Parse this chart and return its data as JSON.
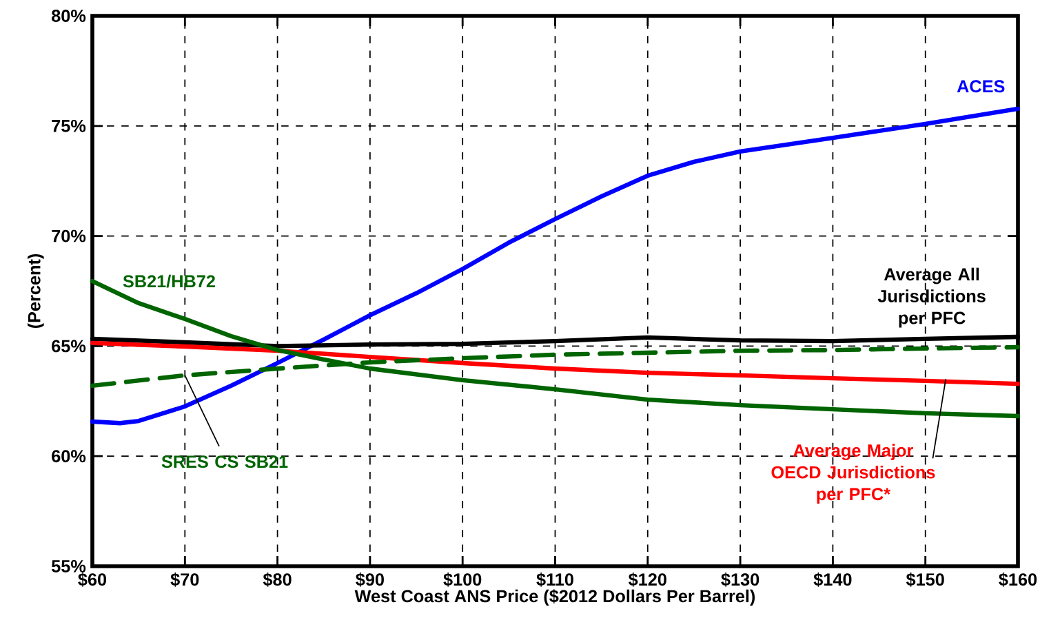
{
  "chart_data": {
    "type": "line",
    "xlabel": "West Coast ANS Price ($2012 Dollars Per Barrel)",
    "ylabel": "(Percent)",
    "xlim": [
      60,
      160
    ],
    "ylim": [
      55,
      80
    ],
    "xticks": [
      {
        "value": 60,
        "label": "$60"
      },
      {
        "value": 70,
        "label": "$70"
      },
      {
        "value": 80,
        "label": "$80"
      },
      {
        "value": 90,
        "label": "$90"
      },
      {
        "value": 100,
        "label": "$100"
      },
      {
        "value": 110,
        "label": "$110"
      },
      {
        "value": 120,
        "label": "$120"
      },
      {
        "value": 130,
        "label": "$130"
      },
      {
        "value": 140,
        "label": "$140"
      },
      {
        "value": 150,
        "label": "$150"
      },
      {
        "value": 160,
        "label": "$160"
      }
    ],
    "yticks": [
      {
        "value": 55,
        "label": "55%"
      },
      {
        "value": 60,
        "label": "60%"
      },
      {
        "value": 65,
        "label": "65%"
      },
      {
        "value": 70,
        "label": "70%"
      },
      {
        "value": 75,
        "label": "75%"
      },
      {
        "value": 80,
        "label": "80%"
      }
    ],
    "grid": true,
    "marker": "none",
    "series": [
      {
        "name": "ACES",
        "color": "#0000ff",
        "x": [
          60,
          63,
          65,
          70,
          75,
          80,
          85,
          90,
          95,
          100,
          105,
          110,
          115,
          120,
          125,
          130,
          140,
          150,
          160
        ],
        "values": [
          61.57,
          61.5,
          61.6,
          62.26,
          63.2,
          64.23,
          65.3,
          66.4,
          67.4,
          68.5,
          69.7,
          70.77,
          71.8,
          72.74,
          73.37,
          73.84,
          74.46,
          75.09,
          75.78
        ]
      },
      {
        "name": "Average All Jurisdictions per PFC",
        "color": "#000000",
        "x": [
          60,
          70,
          80,
          90,
          100,
          110,
          120,
          130,
          140,
          150,
          160
        ],
        "values": [
          65.33,
          65.17,
          65.0,
          65.07,
          65.1,
          65.23,
          65.39,
          65.26,
          65.23,
          65.33,
          65.42
        ]
      },
      {
        "name": "Average Major OECD Jurisdictions per PFC*",
        "color": "#ff0000",
        "x": [
          60,
          70,
          80,
          90,
          100,
          110,
          120,
          130,
          140,
          150,
          160
        ],
        "values": [
          65.14,
          64.98,
          64.79,
          64.51,
          64.23,
          63.98,
          63.79,
          63.67,
          63.54,
          63.42,
          63.29
        ]
      },
      {
        "name": "SB21/HB72",
        "color": "#006400",
        "x": [
          60,
          65,
          70,
          75,
          80,
          85,
          90,
          100,
          110,
          120,
          130,
          140,
          150,
          160
        ],
        "values": [
          67.95,
          66.95,
          66.23,
          65.45,
          64.82,
          64.39,
          63.98,
          63.45,
          63.04,
          62.57,
          62.32,
          62.13,
          61.95,
          61.82
        ]
      },
      {
        "name": "SRES CS SB21",
        "color": "#006400",
        "line_style": "dashed",
        "x": [
          60,
          70,
          80,
          90,
          100,
          110,
          120,
          130,
          140,
          150,
          160
        ],
        "values": [
          63.2,
          63.67,
          63.98,
          64.26,
          64.45,
          64.61,
          64.7,
          64.79,
          64.82,
          64.89,
          64.95
        ]
      }
    ]
  }
}
